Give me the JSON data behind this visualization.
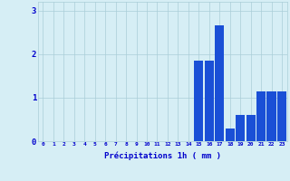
{
  "hours": [
    0,
    1,
    2,
    3,
    4,
    5,
    6,
    7,
    8,
    9,
    10,
    11,
    12,
    13,
    14,
    15,
    16,
    17,
    18,
    19,
    20,
    21,
    22,
    23
  ],
  "values": [
    0,
    0,
    0,
    0,
    0,
    0,
    0,
    0,
    0,
    0,
    0,
    0,
    0,
    0,
    0,
    1.85,
    1.85,
    2.65,
    0.3,
    0.6,
    0.6,
    1.15,
    1.15,
    1.15
  ],
  "bar_color": "#1a4fd6",
  "background_color": "#d6eef5",
  "grid_color": "#aacdd8",
  "xlabel": "Précipitations 1h ( mm )",
  "xlabel_color": "#0000cc",
  "tick_color": "#0000cc",
  "ylim": [
    0,
    3.2
  ],
  "yticks": [
    0,
    1,
    2,
    3
  ],
  "figsize": [
    3.2,
    2.0
  ],
  "dpi": 100
}
